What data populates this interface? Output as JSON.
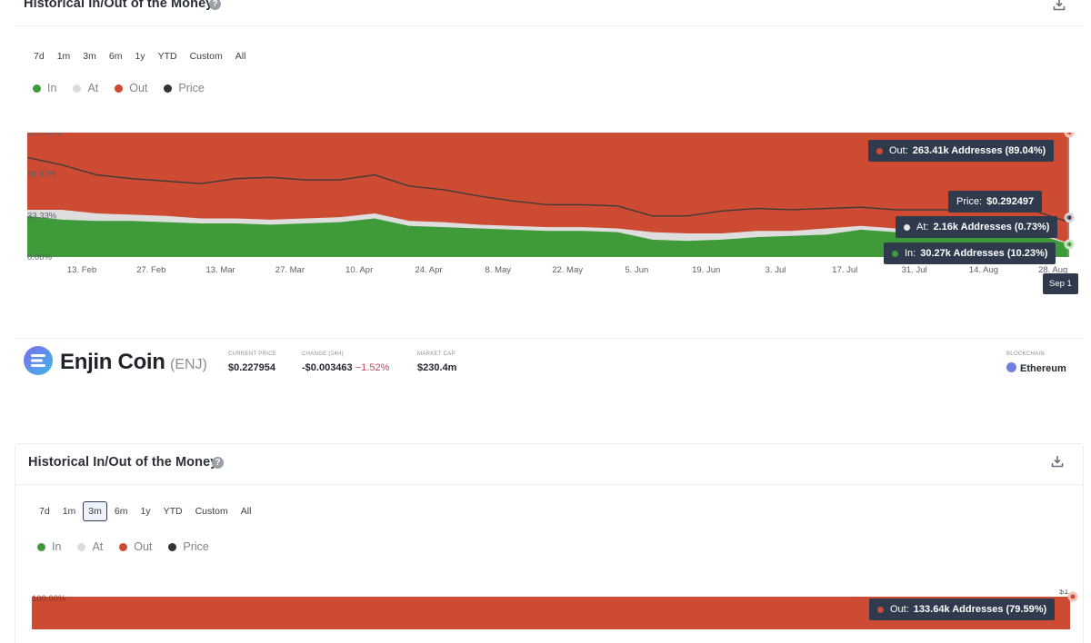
{
  "panel1": {
    "title": "Historical In/Out of the Money",
    "ranges": [
      "7d",
      "1m",
      "3m",
      "6m",
      "1y",
      "YTD",
      "Custom",
      "All"
    ],
    "active_range": "",
    "legend": [
      {
        "label": "In",
        "color": "#3f9a3a"
      },
      {
        "label": "At",
        "color": "#dcdcdc"
      },
      {
        "label": "Out",
        "color": "#cc4b32"
      },
      {
        "label": "Price",
        "color": "#333333"
      }
    ],
    "tooltips": {
      "out": {
        "label": "Out:",
        "value": "263.41k Addresses (89.04%)"
      },
      "price": {
        "label": "Price:",
        "value": "$0.292497"
      },
      "at": {
        "label": "At:",
        "value": "2.16k Addresses (0.73%)"
      },
      "in": {
        "label": "In:",
        "value": "30.27k Addresses (10.23%)"
      },
      "date": "Sep 1"
    }
  },
  "coin": {
    "name": "Enjin Coin",
    "symbol": "(ENJ)",
    "current_price_label": "CURRENT PRICE",
    "current_price": "$0.227954",
    "change_label": "CHANGE (24H)",
    "change_value": "-$0.003463",
    "change_pct": "−1.52%",
    "market_cap_label": "MARKET CAP",
    "market_cap": "$230.4m",
    "blockchain_label": "BLOCKCHAIN",
    "blockchain": "Ethereum"
  },
  "panel2": {
    "title": "Historical In/Out of the Money",
    "ranges": [
      "7d",
      "1m",
      "3m",
      "6m",
      "1y",
      "YTD",
      "Custom",
      "All"
    ],
    "active_range": "3m",
    "legend": [
      {
        "label": "In",
        "color": "#3f9a3a"
      },
      {
        "label": "At",
        "color": "#dcdcdc"
      },
      {
        "label": "Out",
        "color": "#cc4b32"
      },
      {
        "label": "Price",
        "color": "#333333"
      }
    ],
    "y_top_label": "100.00%",
    "price_axis_label": "$1",
    "tooltip_out": {
      "label": "Out:",
      "value": "133.64k Addresses (79.59%)"
    }
  },
  "chart_data": [
    {
      "type": "area",
      "stacking": "percent",
      "x_tick_labels": [
        "13. Feb",
        "27. Feb",
        "13. Mar",
        "27. Mar",
        "10. Apr",
        "24. Apr",
        "8. May",
        "22. May",
        "5. Jun",
        "19. Jun",
        "3. Jul",
        "17. Jul",
        "31. Jul",
        "14. Aug",
        "28. Aug"
      ],
      "y_tick_labels": [
        "0.00%",
        "33.33%",
        "66.67%",
        "100.00%"
      ],
      "ylim": [
        0,
        100
      ],
      "price_axis_label": "$1",
      "x": [
        "3. Feb",
        "10. Feb",
        "17. Feb",
        "24. Feb",
        "3. Mar",
        "10. Mar",
        "17. Mar",
        "24. Mar",
        "31. Mar",
        "7. Apr",
        "14. Apr",
        "21. Apr",
        "28. Apr",
        "5. May",
        "12. May",
        "19. May",
        "26. May",
        "2. Jun",
        "9. Jun",
        "16. Jun",
        "23. Jun",
        "30. Jun",
        "7. Jul",
        "14. Jul",
        "21. Jul",
        "28. Jul",
        "4. Aug",
        "11. Aug",
        "18. Aug",
        "25. Aug",
        "1. Sep"
      ],
      "series": [
        {
          "name": "In",
          "values": [
            33,
            30,
            29,
            29,
            28,
            27,
            27,
            26,
            27,
            28,
            31,
            25,
            24,
            23,
            22,
            21,
            21,
            20,
            14,
            13,
            14,
            16,
            17,
            18,
            22,
            20,
            20,
            20,
            20,
            19,
            10.23
          ]
        },
        {
          "name": "At",
          "values": [
            5,
            8,
            6,
            5,
            5,
            4,
            4,
            4,
            4,
            4,
            4,
            4,
            4,
            3,
            3,
            3,
            3,
            3,
            6,
            6,
            5,
            5,
            4,
            5,
            3,
            3,
            2,
            2,
            2,
            2,
            0.73
          ]
        },
        {
          "name": "Out",
          "values": [
            62,
            62,
            65,
            66,
            67,
            69,
            69,
            70,
            69,
            68,
            65,
            71,
            72,
            74,
            75,
            76,
            76,
            77,
            80,
            81,
            81,
            79,
            79,
            77,
            75,
            77,
            78,
            78,
            78,
            79,
            89.04
          ]
        },
        {
          "name": "Price",
          "values": [
            80,
            74,
            66,
            63,
            61,
            59,
            63,
            64,
            62,
            62,
            66,
            57,
            54,
            49,
            45,
            42,
            42,
            41,
            33,
            33,
            37,
            39,
            38,
            39,
            40,
            38,
            38,
            38,
            38,
            37,
            28
          ]
        }
      ]
    }
  ]
}
